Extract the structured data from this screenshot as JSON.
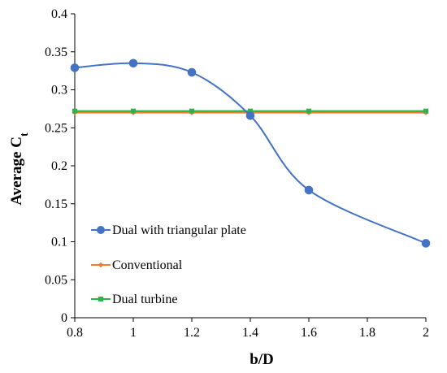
{
  "chart_data": {
    "type": "line",
    "xlabel": "b/D",
    "ylabel": "Average C",
    "ylabel_subscript": "t",
    "xlim": [
      0.8,
      2
    ],
    "ylim": [
      0,
      0.4
    ],
    "x_ticks": [
      "0.8",
      "1",
      "1.2",
      "1.4",
      "1.6",
      "1.8",
      "2"
    ],
    "y_ticks": [
      "0",
      "0.05",
      "0.1",
      "0.15",
      "0.2",
      "0.25",
      "0.3",
      "0.35",
      "0.4"
    ],
    "grid": false,
    "legend_position": "bottom-left",
    "series": [
      {
        "name": "Dual with triangular plate",
        "color": "#4472C4",
        "marker": "circle",
        "smooth": true,
        "x": [
          0.8,
          1.0,
          1.2,
          1.4,
          1.6,
          2.0
        ],
        "y": [
          0.329,
          0.335,
          0.323,
          0.266,
          0.168,
          0.098
        ]
      },
      {
        "name": "Conventional",
        "color": "#ED7D31",
        "marker": "diamond",
        "smooth": false,
        "x": [
          0.8,
          1.0,
          1.2,
          1.4,
          1.6,
          2.0
        ],
        "y": [
          0.27,
          0.27,
          0.27,
          0.27,
          0.27,
          0.27
        ]
      },
      {
        "name": "Dual turbine",
        "color": "#2CB34A",
        "marker": "square",
        "smooth": false,
        "x": [
          0.8,
          1.0,
          1.2,
          1.4,
          1.6,
          2.0
        ],
        "y": [
          0.272,
          0.272,
          0.272,
          0.272,
          0.272,
          0.272
        ]
      }
    ]
  }
}
